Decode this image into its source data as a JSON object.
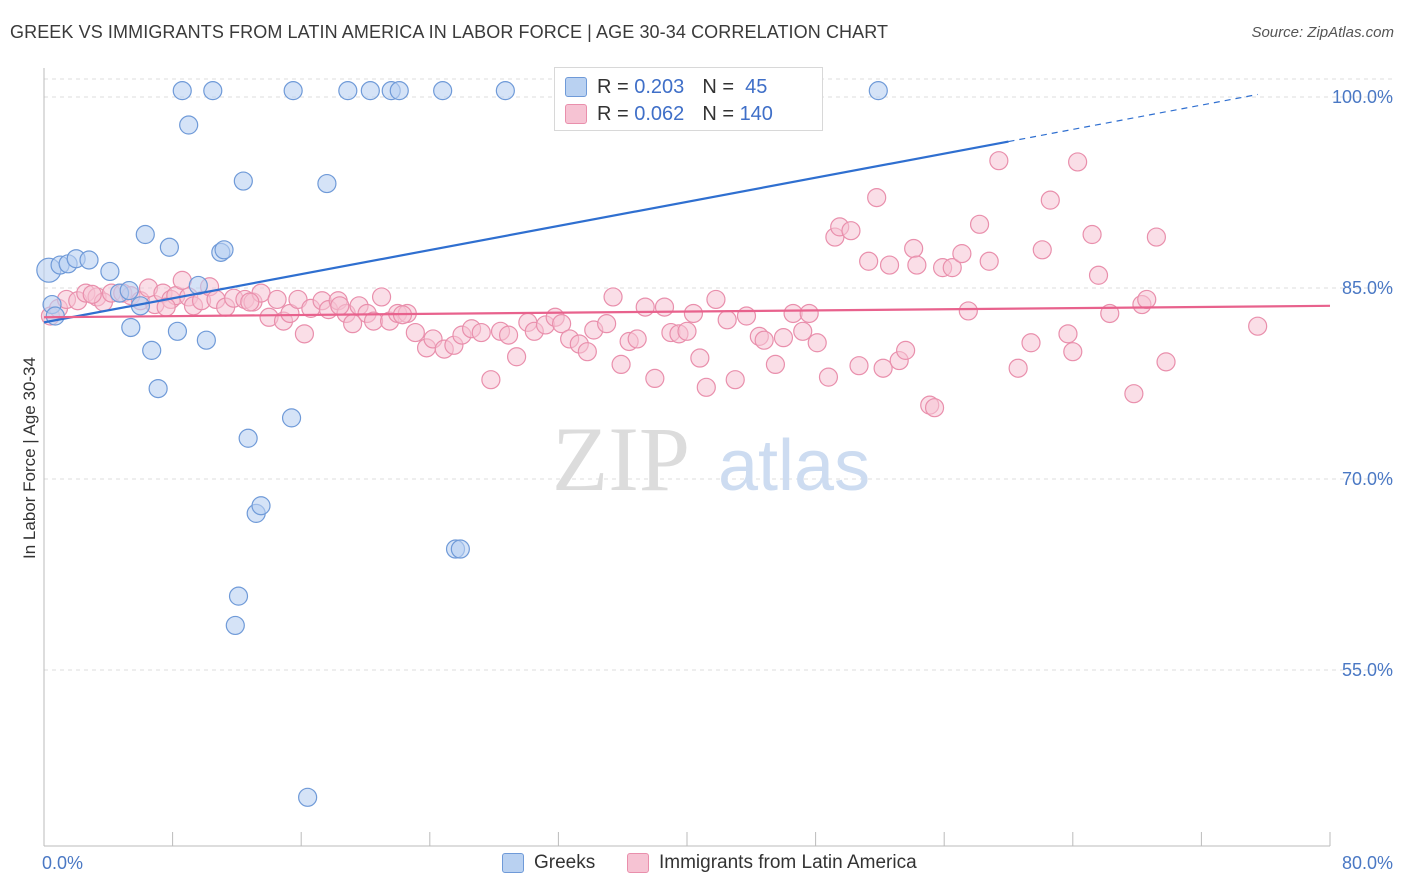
{
  "title": "GREEK VS IMMIGRANTS FROM LATIN AMERICA IN LABOR FORCE | AGE 30-34 CORRELATION CHART",
  "source": "Source: ZipAtlas.com",
  "colors": {
    "greeks_fill": "#b9d1f1",
    "greeks_stroke": "#6f9ad8",
    "greeks_line": "#2f6fd0",
    "latam_fill": "#f6c3d3",
    "latam_stroke": "#e98fac",
    "latam_line": "#e8628d",
    "tick_text": "#4a78c4",
    "grid": "#dddddd"
  },
  "legend": {
    "rows": [
      {
        "r_label": "R = ",
        "r_value": "0.203",
        "n_label": "N = ",
        "n_value": " 45"
      },
      {
        "r_label": "R = ",
        "r_value": "0.062",
        "n_label": "N = ",
        "n_value": "140"
      }
    ]
  },
  "bottom_legend": {
    "items": [
      "Greeks",
      "Immigrants from Latin America"
    ]
  },
  "watermark": {
    "zip": "ZIP",
    "atlas": "atlas"
  },
  "chart_data": {
    "type": "scatter",
    "title": "GREEK VS IMMIGRANTS FROM LATIN AMERICA IN LABOR FORCE | AGE 30-34 CORRELATION CHART",
    "xlabel": "",
    "ylabel": "In Labor Force | Age 30-34",
    "xlim": [
      0,
      80
    ],
    "ylim": [
      40,
      103
    ],
    "x_tick_labels": [
      "0.0%",
      "80.0%"
    ],
    "y_ticks": [
      55,
      70,
      85,
      100
    ],
    "y_tick_labels": [
      "55.0%",
      "70.0%",
      "85.0%",
      "100.0%"
    ],
    "grid": "horizontal dashed",
    "legend_position": "top-center",
    "series": [
      {
        "name": "Greeks",
        "r": 0.203,
        "n": 45,
        "trend": {
          "x0": 0.0,
          "y0": 82.3,
          "x1": 60.0,
          "y1": 96.5,
          "dashed_to_x": 75.5,
          "dashed_to_y": 100.2
        },
        "points": [
          [
            0.3,
            86.4
          ],
          [
            0.5,
            83.7
          ],
          [
            0.7,
            82.8
          ],
          [
            1.0,
            86.8
          ],
          [
            1.5,
            86.9
          ],
          [
            2.0,
            87.3
          ],
          [
            2.8,
            87.2
          ],
          [
            4.1,
            86.3
          ],
          [
            4.7,
            84.6
          ],
          [
            5.3,
            84.8
          ],
          [
            6.0,
            83.6
          ],
          [
            5.4,
            81.9
          ],
          [
            6.3,
            89.2
          ],
          [
            6.7,
            80.1
          ],
          [
            7.1,
            77.1
          ],
          [
            7.8,
            88.2
          ],
          [
            8.3,
            81.6
          ],
          [
            8.6,
            100.5
          ],
          [
            9.0,
            97.8
          ],
          [
            9.6,
            85.2
          ],
          [
            10.1,
            80.9
          ],
          [
            10.5,
            100.5
          ],
          [
            11.0,
            87.8
          ],
          [
            11.2,
            88.0
          ],
          [
            12.4,
            93.4
          ],
          [
            12.7,
            73.2
          ],
          [
            12.1,
            60.8
          ],
          [
            11.9,
            58.5
          ],
          [
            13.2,
            67.3
          ],
          [
            13.5,
            67.9
          ],
          [
            15.5,
            100.5
          ],
          [
            15.4,
            74.8
          ],
          [
            16.4,
            45.0
          ],
          [
            17.6,
            93.2
          ],
          [
            18.9,
            100.5
          ],
          [
            20.3,
            100.5
          ],
          [
            21.6,
            100.5
          ],
          [
            22.1,
            100.5
          ],
          [
            24.8,
            100.5
          ],
          [
            25.6,
            64.5
          ],
          [
            25.9,
            64.5
          ],
          [
            28.7,
            100.5
          ],
          [
            32.4,
            100.5
          ],
          [
            43.8,
            100.5
          ],
          [
            51.9,
            100.5
          ]
        ]
      },
      {
        "name": "Immigrants from Latin America",
        "r": 0.062,
        "n": 140,
        "trend": {
          "x0": 0.0,
          "y0": 82.7,
          "x1": 80.0,
          "y1": 83.6
        },
        "points": [
          [
            0.4,
            82.8
          ],
          [
            0.9,
            83.4
          ],
          [
            1.4,
            84.1
          ],
          [
            2.1,
            84.0
          ],
          [
            2.6,
            84.6
          ],
          [
            3.3,
            84.3
          ],
          [
            3.7,
            83.9
          ],
          [
            4.2,
            84.6
          ],
          [
            4.9,
            84.6
          ],
          [
            5.4,
            84.4
          ],
          [
            6.0,
            84.0
          ],
          [
            6.5,
            85.0
          ],
          [
            6.9,
            83.7
          ],
          [
            7.4,
            84.6
          ],
          [
            7.9,
            84.1
          ],
          [
            8.2,
            84.4
          ],
          [
            8.6,
            85.6
          ],
          [
            9.0,
            84.3
          ],
          [
            9.3,
            83.6
          ],
          [
            9.8,
            84.0
          ],
          [
            10.3,
            85.1
          ],
          [
            10.7,
            84.1
          ],
          [
            11.3,
            83.5
          ],
          [
            11.8,
            84.2
          ],
          [
            12.5,
            84.1
          ],
          [
            13.0,
            83.9
          ],
          [
            13.5,
            84.6
          ],
          [
            14.0,
            82.7
          ],
          [
            14.5,
            84.1
          ],
          [
            14.9,
            82.4
          ],
          [
            15.3,
            83.0
          ],
          [
            15.8,
            84.1
          ],
          [
            16.2,
            81.4
          ],
          [
            16.6,
            83.4
          ],
          [
            17.3,
            84.0
          ],
          [
            17.7,
            83.3
          ],
          [
            18.3,
            84.0
          ],
          [
            18.8,
            83.0
          ],
          [
            19.2,
            82.2
          ],
          [
            19.6,
            83.6
          ],
          [
            20.1,
            83.0
          ],
          [
            20.5,
            82.4
          ],
          [
            21.0,
            84.3
          ],
          [
            21.5,
            82.4
          ],
          [
            22.0,
            83.0
          ],
          [
            22.6,
            83.0
          ],
          [
            23.1,
            81.5
          ],
          [
            23.8,
            80.3
          ],
          [
            24.2,
            81.0
          ],
          [
            24.9,
            80.2
          ],
          [
            25.5,
            80.5
          ],
          [
            26.0,
            81.3
          ],
          [
            26.6,
            81.8
          ],
          [
            27.2,
            81.5
          ],
          [
            27.8,
            77.8
          ],
          [
            28.4,
            81.6
          ],
          [
            28.9,
            81.3
          ],
          [
            29.4,
            79.6
          ],
          [
            30.1,
            82.3
          ],
          [
            30.5,
            81.6
          ],
          [
            31.2,
            82.1
          ],
          [
            31.8,
            82.7
          ],
          [
            32.2,
            82.2
          ],
          [
            32.7,
            81.0
          ],
          [
            33.3,
            80.6
          ],
          [
            33.8,
            80.0
          ],
          [
            34.2,
            81.7
          ],
          [
            35.0,
            82.2
          ],
          [
            35.4,
            84.3
          ],
          [
            35.9,
            79.0
          ],
          [
            36.4,
            80.8
          ],
          [
            36.9,
            81.0
          ],
          [
            37.4,
            83.5
          ],
          [
            38.0,
            77.9
          ],
          [
            38.6,
            83.5
          ],
          [
            39.0,
            81.5
          ],
          [
            39.5,
            81.4
          ],
          [
            40.0,
            81.6
          ],
          [
            40.4,
            83.0
          ],
          [
            40.8,
            79.5
          ],
          [
            41.2,
            77.2
          ],
          [
            41.8,
            84.1
          ],
          [
            42.5,
            82.5
          ],
          [
            43.0,
            77.8
          ],
          [
            43.7,
            82.8
          ],
          [
            44.5,
            81.2
          ],
          [
            44.8,
            80.9
          ],
          [
            45.5,
            79.0
          ],
          [
            46.0,
            81.1
          ],
          [
            46.6,
            83.0
          ],
          [
            47.2,
            81.6
          ],
          [
            47.6,
            83.0
          ],
          [
            48.1,
            80.7
          ],
          [
            48.8,
            78.0
          ],
          [
            49.2,
            89.0
          ],
          [
            49.5,
            89.8
          ],
          [
            50.2,
            89.5
          ],
          [
            50.7,
            78.9
          ],
          [
            51.3,
            87.1
          ],
          [
            51.8,
            92.1
          ],
          [
            52.2,
            78.7
          ],
          [
            52.6,
            86.8
          ],
          [
            53.2,
            79.3
          ],
          [
            53.6,
            80.1
          ],
          [
            54.1,
            88.1
          ],
          [
            54.3,
            86.8
          ],
          [
            55.1,
            75.8
          ],
          [
            55.4,
            75.6
          ],
          [
            55.9,
            86.6
          ],
          [
            56.5,
            86.6
          ],
          [
            57.1,
            87.7
          ],
          [
            57.5,
            83.2
          ],
          [
            58.2,
            90.0
          ],
          [
            58.8,
            87.1
          ],
          [
            59.4,
            95.0
          ],
          [
            60.6,
            78.7
          ],
          [
            61.4,
            80.7
          ],
          [
            62.1,
            88.0
          ],
          [
            62.6,
            91.9
          ],
          [
            63.7,
            81.4
          ],
          [
            64.0,
            80.0
          ],
          [
            64.3,
            94.9
          ],
          [
            65.2,
            89.2
          ],
          [
            65.6,
            86.0
          ],
          [
            66.3,
            83.0
          ],
          [
            67.8,
            76.7
          ],
          [
            68.3,
            83.7
          ],
          [
            68.6,
            84.1
          ],
          [
            69.2,
            89.0
          ],
          [
            69.8,
            79.2
          ],
          [
            75.5,
            82.0
          ],
          [
            3.0,
            84.5
          ],
          [
            7.6,
            83.5
          ],
          [
            12.8,
            83.9
          ],
          [
            18.4,
            83.6
          ],
          [
            22.3,
            82.9
          ]
        ]
      }
    ]
  }
}
